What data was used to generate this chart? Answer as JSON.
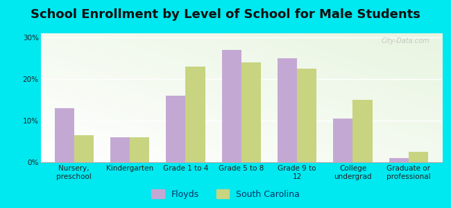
{
  "title": "School Enrollment by Level of School for Male Students",
  "categories": [
    "Nursery,\npreschool",
    "Kindergarten",
    "Grade 1 to 4",
    "Grade 5 to 8",
    "Grade 9 to\n12",
    "College\nundergrad",
    "Graduate or\nprofessional"
  ],
  "floyds": [
    13,
    6,
    16,
    27,
    25,
    10.5,
    1
  ],
  "south_carolina": [
    6.5,
    6,
    23,
    24,
    22.5,
    15,
    2.5
  ],
  "floyds_color": "#c4a8d4",
  "sc_color": "#c8d480",
  "background_color": "#00e8f0",
  "plot_bg_color": "#e8f5e0",
  "ylabel_ticks": [
    "0%",
    "10%",
    "20%",
    "30%"
  ],
  "ytick_vals": [
    0,
    10,
    20,
    30
  ],
  "ylim": [
    0,
    31
  ],
  "bar_width": 0.35,
  "title_fontsize": 13,
  "tick_fontsize": 7.5,
  "legend_fontsize": 9,
  "watermark": "City-Data.com"
}
